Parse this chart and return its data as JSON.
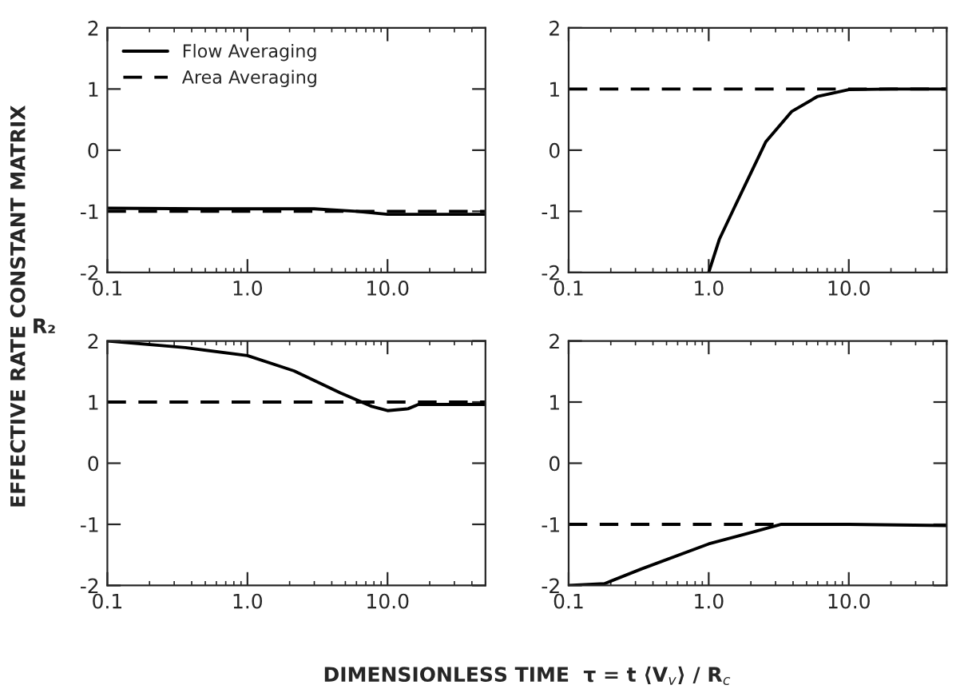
{
  "chart_data": [
    {
      "type": "line",
      "ylabel": "EFFECTIVE RATE CONSTANT MATRIX",
      "annotations": [
        "R₂"
      ],
      "log": "x",
      "xlim": [
        0.1,
        50
      ],
      "ylim": [
        -2,
        2
      ],
      "xticks": [
        {
          "value": 0.1,
          "label": "0.1"
        },
        {
          "value": 1,
          "label": "1.0"
        },
        {
          "value": 10,
          "label": "10.0"
        }
      ],
      "yticks": [
        -2,
        -1,
        0,
        1,
        2
      ],
      "legend": "top left",
      "grid": false,
      "series": [
        {
          "name": "Flow Averaging",
          "color": "#000000",
          "line_style": "solid",
          "x": [
            0.1,
            0.5,
            1,
            3,
            6,
            10,
            20,
            50
          ],
          "values": [
            -0.95,
            -0.96,
            -0.96,
            -0.96,
            -1.0,
            -1.05,
            -1.05,
            -1.05
          ]
        },
        {
          "name": "Area Averaging",
          "color": "#000000",
          "line_style": "dashed",
          "x": [
            0.1,
            50
          ],
          "values": [
            -1,
            -1
          ]
        }
      ]
    },
    {
      "type": "line",
      "log": "x",
      "xlim": [
        0.1,
        50
      ],
      "ylim": [
        -2,
        2
      ],
      "xticks": [
        {
          "value": 0.1,
          "label": "0.1"
        },
        {
          "value": 1,
          "label": "1.0"
        },
        {
          "value": 10,
          "label": "10.0"
        }
      ],
      "yticks": [
        -2,
        -1,
        0,
        1,
        2
      ],
      "grid": false,
      "series": [
        {
          "color": "#000000",
          "line_style": "solid",
          "x": [
            1.0,
            1.19,
            1.53,
            2.56,
            3.9,
            6.0,
            10,
            20,
            50
          ],
          "values": [
            -2,
            -1.46,
            -0.93,
            0.14,
            0.63,
            0.88,
            0.99,
            1.0,
            1.0
          ]
        },
        {
          "color": "#000000",
          "line_style": "dashed",
          "x": [
            0.1,
            50
          ],
          "values": [
            1,
            1
          ]
        }
      ]
    },
    {
      "type": "line",
      "xlabel": "DIMENSIONLESS TIME  τ = t ⟨V$_{v}$⟩ / R$_{c}$",
      "log": "x",
      "xlim": [
        0.1,
        50
      ],
      "ylim": [
        -2,
        2
      ],
      "xticks": [
        {
          "value": 0.1,
          "label": "0.1"
        },
        {
          "value": 1,
          "label": "1.0"
        },
        {
          "value": 10,
          "label": "10.0"
        }
      ],
      "yticks": [
        -2,
        -1,
        0,
        1,
        2
      ],
      "grid": false,
      "series": [
        {
          "color": "#000000",
          "line_style": "solid",
          "x": [
            0.1,
            0.36,
            1,
            2.15,
            4.6,
            7.7,
            10,
            14,
            16.6,
            50
          ],
          "values": [
            2,
            1.89,
            1.76,
            1.51,
            1.15,
            0.93,
            0.86,
            0.89,
            0.96,
            0.96
          ]
        },
        {
          "color": "#000000",
          "line_style": "dashed",
          "x": [
            0.1,
            50
          ],
          "values": [
            1,
            1
          ]
        }
      ]
    },
    {
      "type": "line",
      "log": "x",
      "xlim": [
        0.1,
        50
      ],
      "ylim": [
        -2,
        2
      ],
      "xticks": [
        {
          "value": 0.1,
          "label": "0.1"
        },
        {
          "value": 1,
          "label": "1.0"
        },
        {
          "value": 10,
          "label": "10.0"
        }
      ],
      "yticks": [
        -2,
        -1,
        0,
        1,
        2
      ],
      "grid": false,
      "series": [
        {
          "color": "#000000",
          "line_style": "solid",
          "x": [
            0.1,
            0.18,
            0.33,
            1,
            1.97,
            3.3,
            10,
            50
          ],
          "values": [
            -2,
            -1.97,
            -1.73,
            -1.32,
            -1.14,
            -1.0,
            -1.0,
            -1.02
          ]
        },
        {
          "color": "#000000",
          "line_style": "dashed",
          "x": [
            0.1,
            3.3
          ],
          "values": [
            -1,
            -1
          ]
        }
      ]
    }
  ]
}
